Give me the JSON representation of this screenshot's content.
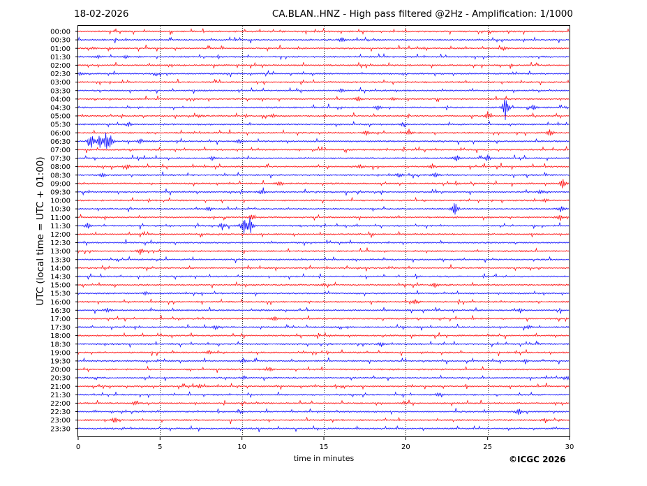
{
  "header": {
    "date": "18-02-2026",
    "title": "CA.BLAN..HNZ - High pass filtered @2Hz - Amplification: 1/1000"
  },
  "footer": {
    "copyright": "©ICGC 2026"
  },
  "colors": {
    "trace_a": "#ff0000",
    "trace_b": "#0000ff",
    "grid": "#000000",
    "background": "#ffffff"
  },
  "chart_data": {
    "type": "line",
    "title": "CA.BLAN..HNZ - High pass filtered @2Hz - Amplification: 1/1000",
    "xlabel": "time in minutes",
    "ylabel": "UTC (local time = UTC + 01:00)",
    "xlim": [
      0,
      30
    ],
    "x_ticks": [
      0,
      5,
      10,
      15,
      20,
      25,
      30
    ],
    "grid": "vertical dotted at 5, 10, 15, 20, 25",
    "row_colors": "alternating red/blue, 00:00 red",
    "rows": [
      {
        "label": "00:00",
        "events": []
      },
      {
        "label": "00:30",
        "events": [
          {
            "t": 16.1,
            "amp": 0.45
          }
        ]
      },
      {
        "label": "01:00",
        "events": [
          {
            "t": 0.9,
            "amp": 0.15
          },
          {
            "t": 26.0,
            "amp": 0.3
          }
        ]
      },
      {
        "label": "01:30",
        "events": [
          {
            "t": 1.2,
            "amp": 0.25
          },
          {
            "t": 2.9,
            "amp": 0.2
          }
        ]
      },
      {
        "label": "02:00",
        "events": []
      },
      {
        "label": "02:30",
        "events": [
          {
            "t": 0.1,
            "amp": 0.2
          }
        ]
      },
      {
        "label": "03:00",
        "events": []
      },
      {
        "label": "03:30",
        "events": [
          {
            "t": 16.1,
            "amp": 0.3
          }
        ]
      },
      {
        "label": "04:00",
        "events": [
          {
            "t": 17.1,
            "amp": 0.35
          },
          {
            "t": 19.2,
            "amp": 0.25
          }
        ]
      },
      {
        "label": "04:30",
        "events": [
          {
            "t": 26.1,
            "amp": 2.2
          },
          {
            "t": 18.3,
            "amp": 0.35
          },
          {
            "t": 27.8,
            "amp": 0.4
          }
        ]
      },
      {
        "label": "05:00",
        "events": [
          {
            "t": 25.0,
            "amp": 0.6
          },
          {
            "t": 7.4,
            "amp": 0.2
          },
          {
            "t": 11.9,
            "amp": 0.25
          }
        ]
      },
      {
        "label": "05:30",
        "events": [
          {
            "t": 3.1,
            "amp": 0.3
          },
          {
            "t": 19.8,
            "amp": 0.3
          }
        ]
      },
      {
        "label": "06:00",
        "events": [
          {
            "t": 20.2,
            "amp": 0.5
          },
          {
            "t": 28.8,
            "amp": 0.5
          },
          {
            "t": 17.6,
            "amp": 0.35
          }
        ]
      },
      {
        "label": "06:30",
        "events": [
          {
            "t": 0.8,
            "amp": 1.3
          },
          {
            "t": 1.3,
            "amp": 1.0
          },
          {
            "t": 1.7,
            "amp": 1.3
          },
          {
            "t": 1.95,
            "amp": 1.1
          },
          {
            "t": 3.8,
            "amp": 0.4
          },
          {
            "t": 9.8,
            "amp": 0.4
          }
        ]
      },
      {
        "label": "07:00",
        "events": []
      },
      {
        "label": "07:30",
        "events": [
          {
            "t": 23.1,
            "amp": 0.45
          },
          {
            "t": 25.0,
            "amp": 0.4
          },
          {
            "t": 8.2,
            "amp": 0.3
          }
        ]
      },
      {
        "label": "08:00",
        "events": [
          {
            "t": 3.0,
            "amp": 0.4
          },
          {
            "t": 21.6,
            "amp": 0.4
          },
          {
            "t": 17.2,
            "amp": 0.3
          }
        ]
      },
      {
        "label": "08:30",
        "events": [
          {
            "t": 1.5,
            "amp": 0.3
          },
          {
            "t": 19.6,
            "amp": 0.4
          },
          {
            "t": 21.8,
            "amp": 0.4
          }
        ]
      },
      {
        "label": "09:00",
        "events": [
          {
            "t": 29.6,
            "amp": 0.9
          },
          {
            "t": 12.3,
            "amp": 0.35
          }
        ]
      },
      {
        "label": "09:30",
        "events": [
          {
            "t": 11.2,
            "amp": 0.35
          },
          {
            "t": 28.2,
            "amp": 0.3
          }
        ]
      },
      {
        "label": "10:00",
        "events": [
          {
            "t": 28.5,
            "amp": 0.3
          }
        ]
      },
      {
        "label": "10:30",
        "events": [
          {
            "t": 23.0,
            "amp": 1.0
          },
          {
            "t": 8.0,
            "amp": 0.4
          },
          {
            "t": 29.5,
            "amp": 0.4
          }
        ]
      },
      {
        "label": "11:00",
        "events": [
          {
            "t": 10.6,
            "amp": 0.45
          },
          {
            "t": 29.4,
            "amp": 0.35
          }
        ]
      },
      {
        "label": "11:30",
        "events": [
          {
            "t": 10.1,
            "amp": 1.4
          },
          {
            "t": 10.5,
            "amp": 1.2
          },
          {
            "t": 8.8,
            "amp": 0.5
          },
          {
            "t": 0.6,
            "amp": 0.45
          }
        ]
      },
      {
        "label": "12:00",
        "events": []
      },
      {
        "label": "12:30",
        "events": []
      },
      {
        "label": "13:00",
        "events": [
          {
            "t": 3.8,
            "amp": 0.55
          }
        ]
      },
      {
        "label": "13:30",
        "events": []
      },
      {
        "label": "14:00",
        "events": []
      },
      {
        "label": "14:30",
        "events": []
      },
      {
        "label": "15:00",
        "events": [
          {
            "t": 21.8,
            "amp": 0.4
          },
          {
            "t": 15.0,
            "amp": 0.2
          }
        ]
      },
      {
        "label": "15:30",
        "events": [
          {
            "t": 4.1,
            "amp": 0.25
          }
        ]
      },
      {
        "label": "16:00",
        "events": [
          {
            "t": 20.6,
            "amp": 0.4
          }
        ]
      },
      {
        "label": "16:30",
        "events": [
          {
            "t": 1.8,
            "amp": 0.3
          },
          {
            "t": 27.0,
            "amp": 0.3
          }
        ]
      },
      {
        "label": "17:00",
        "events": [
          {
            "t": 12.0,
            "amp": 0.35
          }
        ]
      },
      {
        "label": "17:30",
        "events": [
          {
            "t": 8.4,
            "amp": 0.25
          },
          {
            "t": 27.5,
            "amp": 0.3
          }
        ]
      },
      {
        "label": "18:00",
        "events": []
      },
      {
        "label": "18:30",
        "events": [
          {
            "t": 18.5,
            "amp": 0.35
          }
        ]
      },
      {
        "label": "19:00",
        "events": [
          {
            "t": 8.0,
            "amp": 0.3
          }
        ]
      },
      {
        "label": "19:30",
        "events": [
          {
            "t": 10.1,
            "amp": 0.4
          },
          {
            "t": 27.3,
            "amp": 0.3
          }
        ]
      },
      {
        "label": "20:00",
        "events": [
          {
            "t": 11.7,
            "amp": 0.25
          }
        ]
      },
      {
        "label": "20:30",
        "events": [
          {
            "t": 10.1,
            "amp": 0.3
          },
          {
            "t": 29.9,
            "amp": 0.3
          }
        ]
      },
      {
        "label": "21:00",
        "events": [
          {
            "t": 7.4,
            "amp": 0.3
          }
        ]
      },
      {
        "label": "21:30",
        "events": [
          {
            "t": 22.0,
            "amp": 0.25
          }
        ]
      },
      {
        "label": "22:00",
        "events": [
          {
            "t": 3.5,
            "amp": 0.4
          },
          {
            "t": 19.9,
            "amp": 0.25
          }
        ]
      },
      {
        "label": "22:30",
        "events": [
          {
            "t": 26.9,
            "amp": 0.5
          },
          {
            "t": 9.9,
            "amp": 0.25
          }
        ]
      },
      {
        "label": "23:00",
        "events": [
          {
            "t": 2.2,
            "amp": 0.5
          },
          {
            "t": 28.5,
            "amp": 0.2
          }
        ]
      },
      {
        "label": "23:30",
        "events": []
      }
    ]
  }
}
